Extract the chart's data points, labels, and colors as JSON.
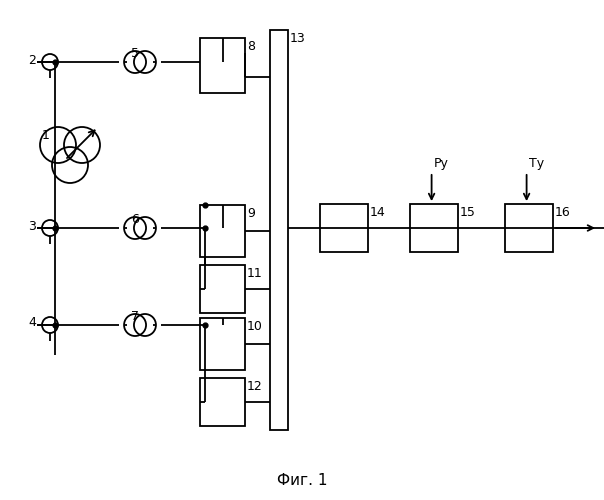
{
  "bg_color": "#ffffff",
  "line_color": "#000000",
  "fig_caption": "Фиг. 1",
  "fig_size": [
    6.04,
    5.0
  ],
  "dpi": 100
}
